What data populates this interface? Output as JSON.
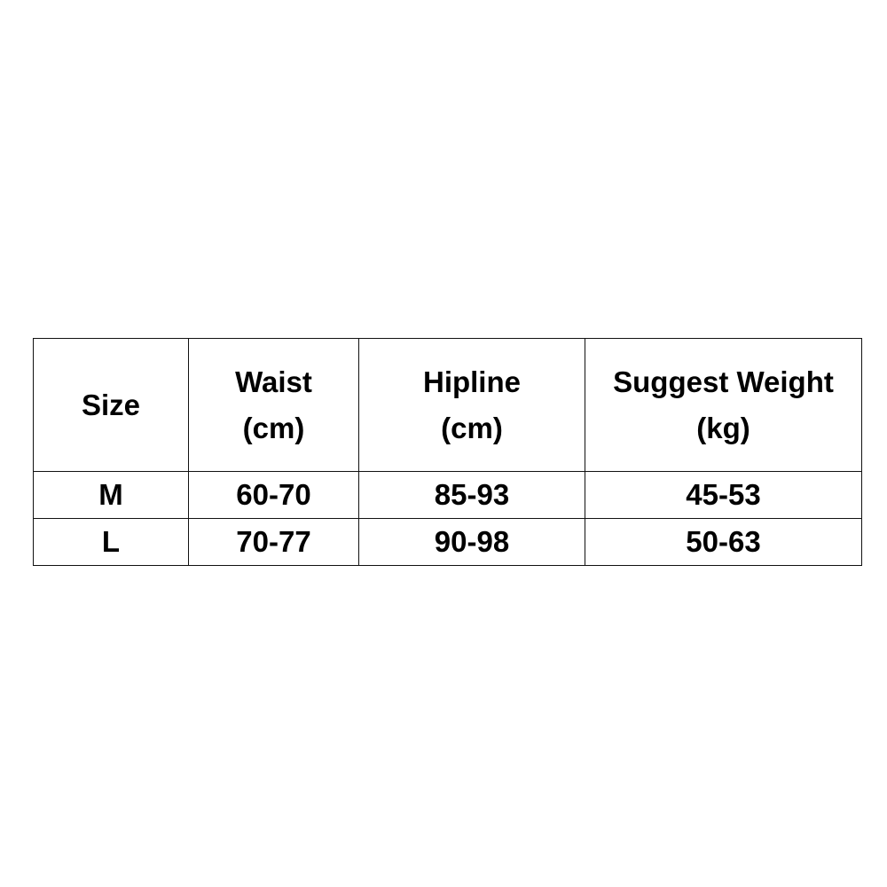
{
  "table": {
    "header": [
      "Size",
      "Waist\n(cm)",
      "Hipline\n(cm)",
      "Suggest Weight\n(kg)"
    ],
    "rows": [
      [
        "M",
        "60-70",
        "85-93",
        "45-53"
      ],
      [
        "L",
        "70-77",
        "90-98",
        "50-63"
      ]
    ]
  }
}
